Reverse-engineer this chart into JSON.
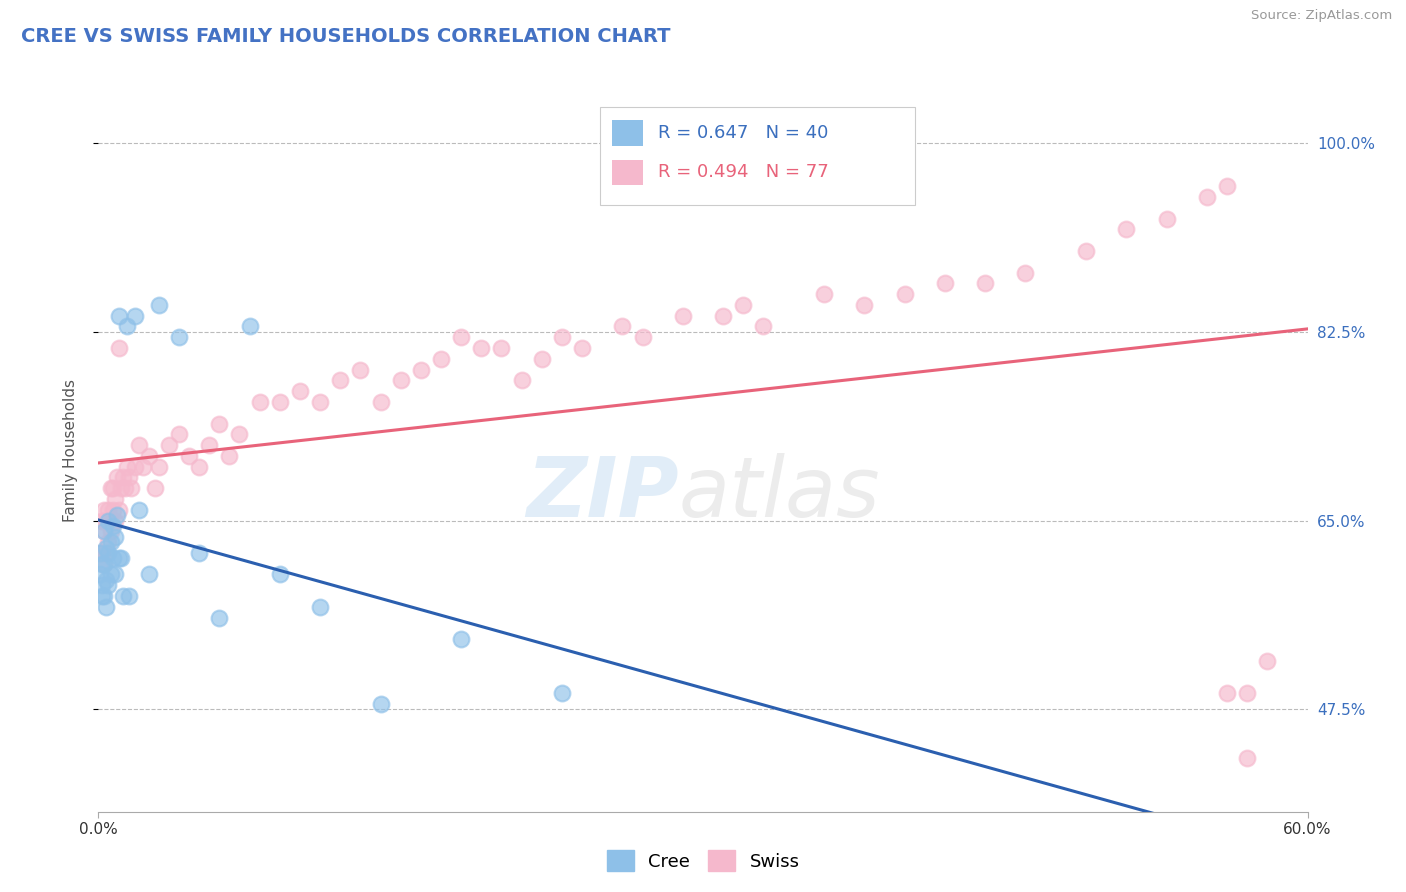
{
  "title": "CREE VS SWISS FAMILY HOUSEHOLDS CORRELATION CHART",
  "source": "Source: ZipAtlas.com",
  "ylabel": "Family Households",
  "x_min": 0.0,
  "x_max": 0.6,
  "y_min": 0.38,
  "y_max": 1.05,
  "cree_color": "#8ec0e8",
  "swiss_color": "#f5b8cc",
  "cree_line_color": "#2b5faf",
  "swiss_line_color": "#e8637a",
  "R_cree": 0.647,
  "N_cree": 40,
  "R_swiss": 0.494,
  "N_swiss": 77,
  "grid_color": "#bbbbbb",
  "background_color": "#ffffff",
  "title_color": "#4472c4",
  "y_ticks": [
    0.475,
    0.65,
    0.825,
    1.0
  ],
  "cree_x": [
    0.001,
    0.001,
    0.002,
    0.002,
    0.002,
    0.003,
    0.003,
    0.003,
    0.004,
    0.004,
    0.004,
    0.005,
    0.005,
    0.005,
    0.006,
    0.006,
    0.007,
    0.007,
    0.008,
    0.008,
    0.009,
    0.01,
    0.01,
    0.011,
    0.012,
    0.014,
    0.015,
    0.018,
    0.02,
    0.025,
    0.03,
    0.04,
    0.05,
    0.06,
    0.075,
    0.09,
    0.11,
    0.14,
    0.18,
    0.23
  ],
  "cree_y": [
    0.62,
    0.6,
    0.59,
    0.61,
    0.58,
    0.64,
    0.61,
    0.58,
    0.625,
    0.595,
    0.57,
    0.65,
    0.62,
    0.59,
    0.63,
    0.6,
    0.645,
    0.615,
    0.635,
    0.6,
    0.655,
    0.84,
    0.615,
    0.615,
    0.58,
    0.83,
    0.58,
    0.84,
    0.66,
    0.6,
    0.85,
    0.82,
    0.62,
    0.56,
    0.83,
    0.6,
    0.57,
    0.48,
    0.54,
    0.49
  ],
  "swiss_x": [
    0.001,
    0.002,
    0.002,
    0.003,
    0.003,
    0.003,
    0.004,
    0.004,
    0.005,
    0.005,
    0.006,
    0.006,
    0.007,
    0.007,
    0.008,
    0.008,
    0.009,
    0.01,
    0.01,
    0.011,
    0.012,
    0.013,
    0.014,
    0.015,
    0.016,
    0.018,
    0.02,
    0.022,
    0.025,
    0.028,
    0.03,
    0.035,
    0.04,
    0.045,
    0.05,
    0.055,
    0.06,
    0.065,
    0.07,
    0.08,
    0.09,
    0.1,
    0.11,
    0.12,
    0.13,
    0.14,
    0.15,
    0.16,
    0.17,
    0.18,
    0.19,
    0.2,
    0.21,
    0.22,
    0.23,
    0.24,
    0.26,
    0.27,
    0.29,
    0.31,
    0.32,
    0.33,
    0.36,
    0.38,
    0.4,
    0.42,
    0.44,
    0.46,
    0.49,
    0.51,
    0.53,
    0.55,
    0.56,
    0.56,
    0.57,
    0.57,
    0.58
  ],
  "swiss_y": [
    0.62,
    0.65,
    0.62,
    0.66,
    0.64,
    0.61,
    0.65,
    0.62,
    0.66,
    0.63,
    0.68,
    0.64,
    0.66,
    0.68,
    0.65,
    0.67,
    0.69,
    0.81,
    0.66,
    0.68,
    0.69,
    0.68,
    0.7,
    0.69,
    0.68,
    0.7,
    0.72,
    0.7,
    0.71,
    0.68,
    0.7,
    0.72,
    0.73,
    0.71,
    0.7,
    0.72,
    0.74,
    0.71,
    0.73,
    0.76,
    0.76,
    0.77,
    0.76,
    0.78,
    0.79,
    0.76,
    0.78,
    0.79,
    0.8,
    0.82,
    0.81,
    0.81,
    0.78,
    0.8,
    0.82,
    0.81,
    0.83,
    0.82,
    0.84,
    0.84,
    0.85,
    0.83,
    0.86,
    0.85,
    0.86,
    0.87,
    0.87,
    0.88,
    0.9,
    0.92,
    0.93,
    0.95,
    0.96,
    0.49,
    0.49,
    0.43,
    0.52
  ]
}
